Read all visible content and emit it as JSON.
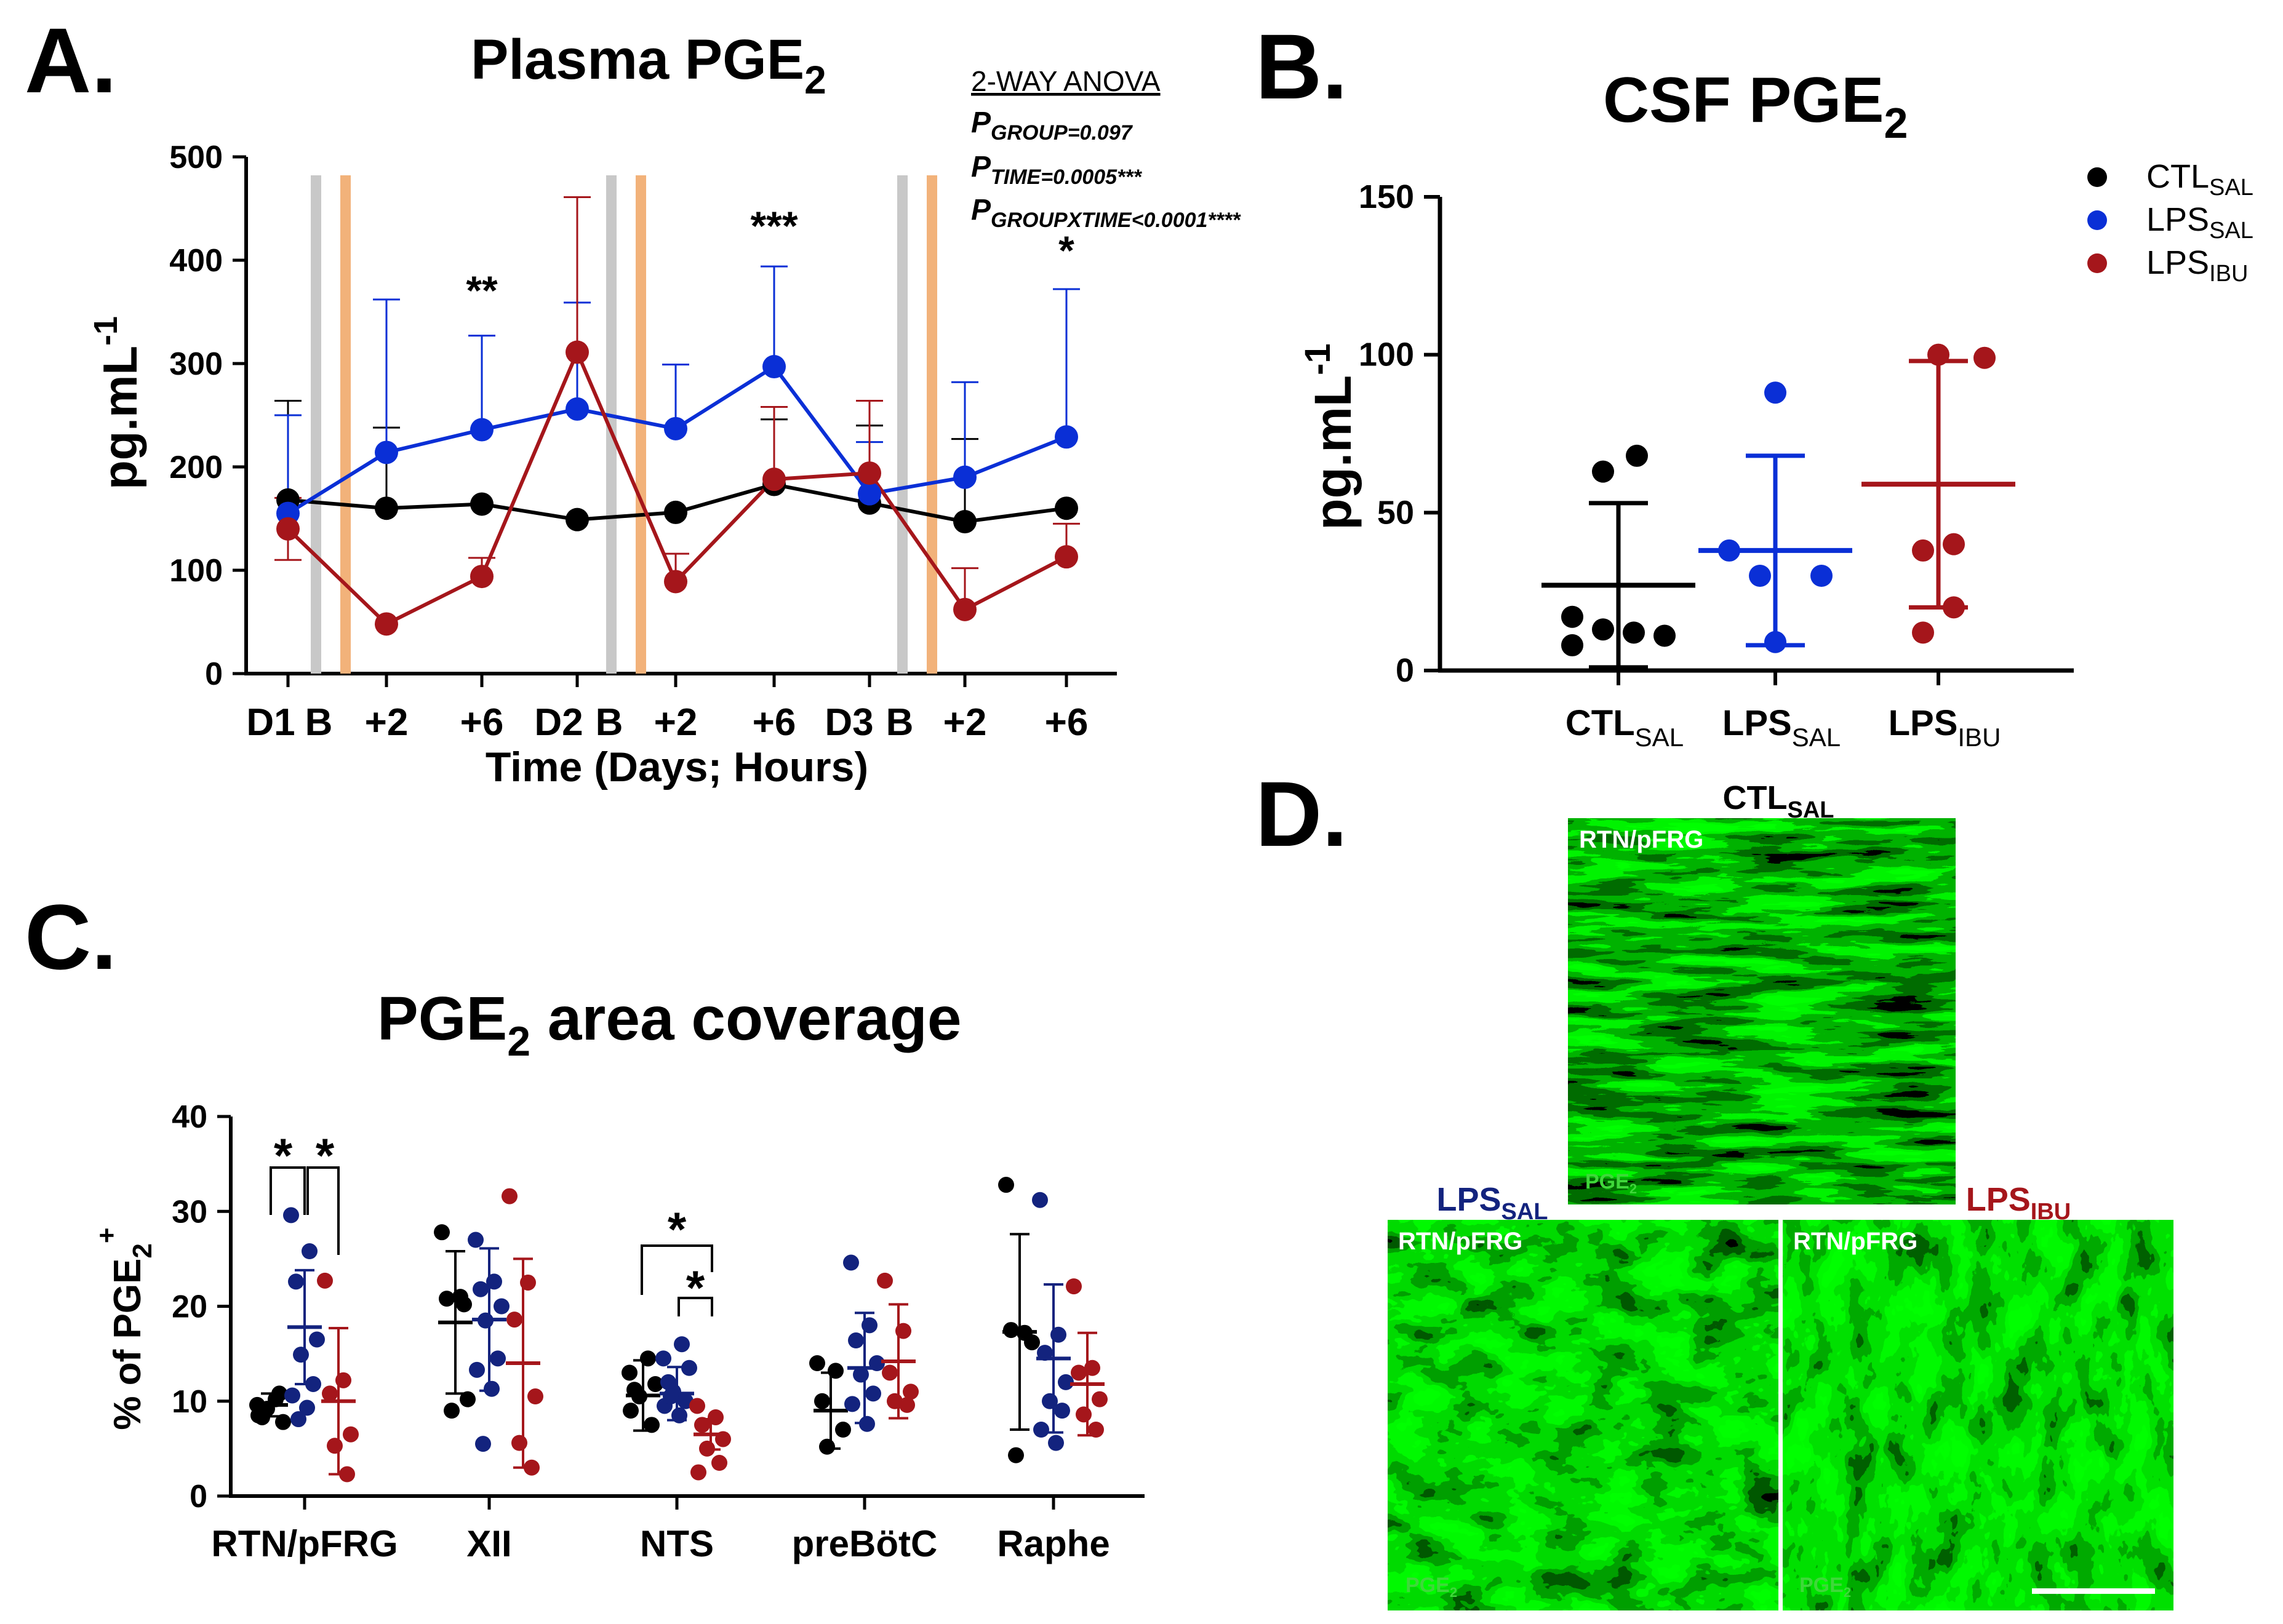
{
  "colors": {
    "ctl": "#000000",
    "sal": "#0a2fd6",
    "ibu": "#a5161b",
    "gray": "#c8c8c8",
    "orange": "#f2b27a",
    "blueC": "#13237e",
    "microGreen": "#38d92a"
  },
  "panelA": {
    "letter": "A.",
    "title": "Plasma PGE",
    "title_sub": "2",
    "ylabel": "pg.mL",
    "ylabel_sup": "-1",
    "xlabel": "Time (Days; Hours)",
    "yticks": [
      "0",
      "100",
      "200",
      "300",
      "400",
      "500"
    ],
    "xticks": [
      "D1",
      "B",
      "+2",
      "+6",
      "D2",
      "B",
      "+2",
      "+6",
      "D3",
      "B",
      "+2",
      "+6"
    ],
    "anova": {
      "header": "2-WAY ANOVA",
      "lines": [
        {
          "p": "P",
          "sub": "GROUP=0.097",
          "tail": ""
        },
        {
          "p": "P",
          "sub": "TIME=0.0005***",
          "tail": ""
        },
        {
          "p": "P",
          "sub": "GROUPXTIME<0.0001****",
          "tail": ""
        }
      ]
    },
    "stars": [
      "**",
      "***",
      "*"
    ]
  },
  "panelB": {
    "letter": "B.",
    "title": "CSF PGE",
    "title_sub": "2",
    "ylabel": "pg.mL",
    "ylabel_sup": "-1",
    "yticks": [
      "0",
      "50",
      "100",
      "150"
    ],
    "groups": [
      {
        "name": "CTL",
        "sub": "SAL"
      },
      {
        "name": "LPS",
        "sub": "SAL"
      },
      {
        "name": "LPS",
        "sub": "IBU"
      }
    ]
  },
  "legend": [
    {
      "name": "CTL",
      "sub": "SAL",
      "color": "#000000"
    },
    {
      "name": "LPS",
      "sub": "SAL",
      "color": "#0a2fd6"
    },
    {
      "name": "LPS",
      "sub": "IBU",
      "color": "#a5161b"
    }
  ],
  "panelC": {
    "letter": "C.",
    "title_pre": "PGE",
    "title_sub": "2",
    "title_post": " area coverage",
    "ylabel_pre": "% of PGE",
    "ylabel_sub": "2",
    "ylabel_sup": "+",
    "yticks": [
      "0",
      "10",
      "20",
      "30",
      "40"
    ],
    "stars": [
      "*",
      "*",
      "*",
      "*"
    ]
  },
  "panelD": {
    "letter": "D.",
    "images": [
      {
        "title": "CTL",
        "title_sub": "SAL",
        "region": "RTN/pFRG",
        "stain": "PGE",
        "stain_sub": "2"
      },
      {
        "title": "LPS",
        "title_sub": "SAL",
        "region": "RTN/pFRG",
        "stain": "PGE",
        "stain_sub": "2"
      },
      {
        "title": "LPS",
        "title_sub": "IBU",
        "region": "RTN/pFRG",
        "stain": "PGE",
        "stain_sub": "2"
      }
    ]
  },
  "chart_data": [
    {
      "panel": "A",
      "type": "line",
      "title": "Plasma PGE2",
      "xlabel": "Time (Days; Hours)",
      "ylabel": "pg.mL-1",
      "ylim": [
        0,
        500
      ],
      "categories": [
        "D1 B",
        "+2",
        "+6",
        "D2 B",
        "+2",
        "+6",
        "D3 B",
        "+2",
        "+6"
      ],
      "series": [
        {
          "name": "CTL_SAL",
          "color": "#000000",
          "values": [
            168,
            160,
            164,
            149,
            156,
            183,
            165,
            147,
            160
          ],
          "sd": [
            96,
            78,
            0,
            0,
            0,
            63,
            75,
            80,
            0
          ]
        },
        {
          "name": "LPS_SAL",
          "color": "#0a2fd6",
          "values": [
            155,
            214,
            236,
            256,
            237,
            297,
            174,
            190,
            229
          ],
          "sd": [
            95,
            148,
            91,
            103,
            62,
            97,
            50,
            92,
            143
          ]
        },
        {
          "name": "LPS_IBU",
          "color": "#a5161b",
          "values": [
            140,
            48,
            94,
            311,
            89,
            188,
            194,
            62,
            113
          ],
          "sd": [
            30,
            0,
            18,
            150,
            27,
            70,
            70,
            40,
            32
          ]
        }
      ],
      "significance": [
        {
          "x": "+6 (D1)",
          "label": "**"
        },
        {
          "x": "+6 (D2)",
          "label": "***"
        },
        {
          "x": "+6 (D3)",
          "label": "*"
        }
      ],
      "annotation": [
        "2-WAY ANOVA",
        "P GROUP=0.097",
        "P TIME=0.0005***",
        "P GROUPXTIME<0.0001****"
      ]
    },
    {
      "panel": "B",
      "type": "scatter",
      "title": "CSF PGE2",
      "ylabel": "pg.mL-1",
      "ylim": [
        0,
        150
      ],
      "categories": [
        "CTL_SAL",
        "LPS_SAL",
        "LPS_IBU"
      ],
      "series": [
        {
          "name": "CTL_SAL",
          "color": "#000000",
          "mean": 27,
          "sd": 26,
          "points": [
            63,
            68,
            17,
            8,
            13,
            12,
            11
          ]
        },
        {
          "name": "LPS_SAL",
          "color": "#0a2fd6",
          "mean": 38,
          "sd": 30,
          "points": [
            88,
            38,
            30,
            30,
            9
          ]
        },
        {
          "name": "LPS_IBU",
          "color": "#a5161b",
          "mean": 59,
          "sd": 39,
          "points": [
            100,
            99,
            38,
            40,
            20,
            12
          ]
        }
      ]
    },
    {
      "panel": "C",
      "type": "scatter",
      "title": "PGE2 area coverage",
      "ylabel": "% of PGE2+",
      "ylim": [
        0,
        40
      ],
      "categories": [
        "RTN/pFRG",
        "XII",
        "NTS",
        "preBötC",
        "Raphe"
      ],
      "series": [
        {
          "name": "CTL_SAL",
          "color": "#000000",
          "mean": [
            9.6,
            18.3,
            10.6,
            9.0,
            17.3
          ],
          "sd": [
            1.2,
            7.5,
            3.7,
            4.0,
            10.3
          ],
          "points": [
            [
              9.6,
              10.2,
              8.3,
              7.8,
              9.2,
              10.8,
              8.5
            ],
            [
              27.8,
              21.0,
              20.8,
              10.2,
              9.0,
              20.2
            ],
            [
              13.0,
              14.5,
              11.2,
              11.8,
              10.5,
              7.5,
              9.0
            ],
            [
              14.0,
              13.2,
              10.0,
              7.0,
              5.2
            ],
            [
              32.8,
              17.2,
              17.5,
              16.2,
              4.3
            ]
          ]
        },
        {
          "name": "LPS_SAL",
          "color": "#13237e",
          "mean": [
            17.8,
            18.6,
            10.8,
            13.5,
            14.5
          ],
          "sd": [
            6.0,
            7.5,
            2.8,
            5.8,
            7.8
          ],
          "points": [
            [
              29.6,
              25.8,
              22.6,
              16.5,
              14.9,
              11.8,
              10.6,
              9.3,
              8.1
            ],
            [
              27.0,
              22.6,
              21.8,
              20.0,
              18.5,
              14.5,
              13.3,
              11.3,
              5.5
            ],
            [
              14.5,
              16.0,
              12.0,
              13.5,
              11.0,
              10.0,
              9.5,
              8.5,
              10.5
            ],
            [
              24.6,
              18.0,
              16.4,
              14.0,
              12.8,
              10.8,
              9.7,
              7.6
            ],
            [
              31.2,
              17.0,
              15.1,
              12.0,
              10.0,
              9.0,
              7.0,
              5.6
            ]
          ]
        },
        {
          "name": "LPS_IBU",
          "color": "#a5161b",
          "mean": [
            10.0,
            14.0,
            6.5,
            14.2,
            11.8
          ],
          "sd": [
            7.7,
            11.0,
            1.6,
            6.0,
            5.4
          ],
          "points": [
            [
              22.7,
              12.2,
              10.8,
              6.5,
              5.3,
              2.3
            ],
            [
              31.6,
              22.5,
              18.6,
              10.5,
              5.6,
              3.0
            ],
            [
              9.5,
              8.3,
              7.5,
              6.0,
              5.0,
              3.5,
              2.5
            ],
            [
              22.7,
              17.4,
              13.0,
              11.0,
              10.0,
              9.6
            ],
            [
              22.1,
              13.5,
              13.0,
              10.2,
              8.6,
              7.0
            ]
          ]
        }
      ],
      "significance": [
        {
          "region": "RTN/pFRG",
          "pair": [
            "CTL_SAL",
            "LPS_SAL"
          ],
          "label": "*"
        },
        {
          "region": "RTN/pFRG",
          "pair": [
            "LPS_SAL",
            "LPS_IBU"
          ],
          "label": "*"
        },
        {
          "region": "NTS",
          "pair": [
            "CTL_SAL",
            "LPS_IBU"
          ],
          "label": "*"
        },
        {
          "region": "NTS",
          "pair": [
            "LPS_SAL",
            "LPS_IBU"
          ],
          "label": "*"
        }
      ]
    }
  ]
}
